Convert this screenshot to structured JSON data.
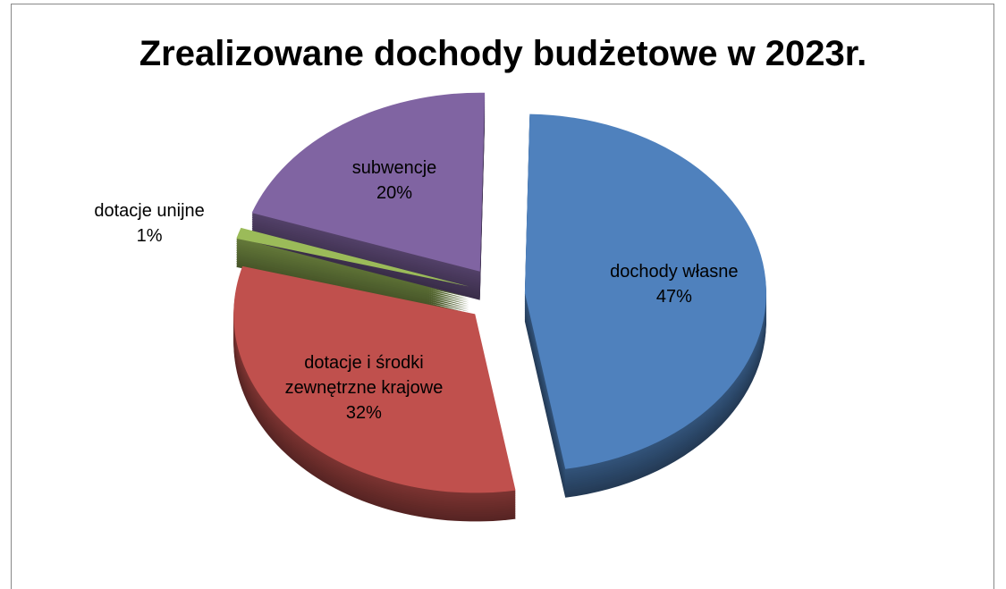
{
  "chart_data": {
    "type": "pie",
    "title": "Zrealizowane dochody budżetowe w 2023r.",
    "categories": [
      "dochody własne",
      "dotacje i środki zewnętrzne krajowe",
      "dotacje unijne",
      "subwencje"
    ],
    "values": [
      47,
      32,
      1,
      20
    ],
    "value_labels": [
      "47%",
      "32%",
      "1%",
      "20%"
    ],
    "colors": [
      "#4f81bd",
      "#c0504d",
      "#9bbb59",
      "#8064a2"
    ]
  }
}
